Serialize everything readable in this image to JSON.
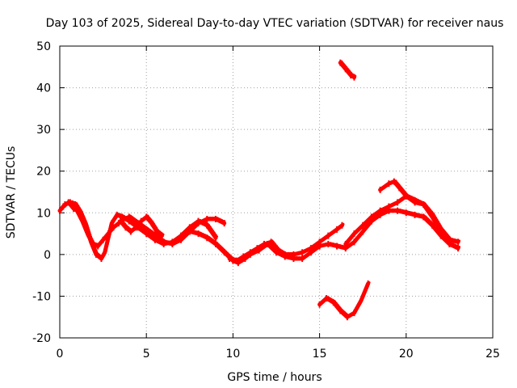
{
  "chart_data": {
    "type": "line",
    "title": "Day 103 of 2025, Sidereal Day-to-day VTEC variation (SDTVAR) for receiver naus",
    "xlabel": "GPS time / hours",
    "ylabel": "SDTVAR / TECUs",
    "xlim": [
      0,
      25
    ],
    "ylim": [
      -20,
      50
    ],
    "xticks": [
      0,
      5,
      10,
      15,
      20,
      25
    ],
    "yticks": [
      -20,
      -10,
      0,
      10,
      20,
      30,
      40,
      50
    ],
    "xtick_labels": [
      "0",
      "5",
      "10",
      "15",
      "20",
      "25"
    ],
    "ytick_labels": [
      "-20",
      "-10",
      "0",
      "10",
      "20",
      "30",
      "40",
      "50"
    ],
    "grid": true,
    "legend": "none",
    "series_color": "#ff0000",
    "series": [
      {
        "name": "track-a",
        "x": [
          0.0,
          0.3,
          0.6,
          0.9,
          1.2,
          1.5,
          1.8,
          2.1,
          2.4,
          2.6,
          2.8,
          3.0,
          3.3,
          3.6,
          4.0,
          4.5,
          5.0,
          5.5,
          6.0,
          6.5,
          7.0,
          7.5,
          8.0,
          8.5,
          9.0
        ],
        "y": [
          10.5,
          12.0,
          12.5,
          12.0,
          10.0,
          7.0,
          3.0,
          0.0,
          -1.0,
          0.5,
          4.0,
          7.5,
          9.5,
          9.0,
          8.0,
          6.5,
          5.0,
          3.5,
          2.5,
          3.0,
          4.5,
          6.5,
          8.0,
          7.0,
          4.0
        ]
      },
      {
        "name": "track-b",
        "x": [
          0.2,
          0.5,
          0.8,
          1.0,
          1.3,
          1.6,
          1.9,
          2.2,
          2.5,
          2.8,
          3.1,
          3.4,
          3.7,
          4.0,
          4.5,
          5.0,
          5.5,
          6.0,
          6.5,
          7.0,
          7.5,
          8.0,
          8.5,
          9.0,
          9.5
        ],
        "y": [
          11.5,
          12.5,
          11.0,
          10.5,
          8.0,
          5.0,
          2.5,
          2.0,
          3.5,
          5.0,
          6.5,
          7.5,
          8.5,
          9.0,
          7.5,
          6.0,
          4.5,
          3.0,
          2.5,
          3.5,
          5.5,
          7.5,
          8.5,
          8.5,
          7.5
        ]
      },
      {
        "name": "track-c",
        "x": [
          3.5,
          3.8,
          4.1,
          4.4,
          4.7,
          5.0,
          5.3,
          5.6,
          5.9
        ],
        "y": [
          8.0,
          6.5,
          5.5,
          6.5,
          8.0,
          9.0,
          7.5,
          5.5,
          4.5
        ]
      },
      {
        "name": "track-d",
        "x": [
          7.5,
          8.0,
          8.5,
          9.0,
          9.5,
          10.0,
          10.3,
          10.7,
          11.0,
          11.5,
          12.0,
          12.5,
          13.0,
          13.5,
          14.0,
          14.5,
          15.0
        ],
        "y": [
          5.5,
          5.0,
          4.0,
          2.5,
          0.5,
          -1.5,
          -2.0,
          -1.0,
          0.0,
          1.0,
          2.5,
          0.5,
          -0.5,
          -1.0,
          -1.0,
          0.5,
          2.0
        ]
      },
      {
        "name": "track-e",
        "x": [
          9.8,
          10.2,
          10.6,
          11.0,
          11.4,
          11.8,
          12.2,
          12.6,
          13.0,
          13.5,
          14.0,
          14.5,
          15.0,
          15.5,
          16.0,
          16.3
        ],
        "y": [
          -1.0,
          -1.5,
          -0.5,
          0.5,
          1.5,
          2.5,
          3.0,
          1.0,
          0.0,
          0.0,
          0.5,
          1.5,
          3.0,
          4.5,
          6.0,
          7.0
        ]
      },
      {
        "name": "track-f",
        "x": [
          15.0,
          15.5,
          16.0,
          16.5,
          17.0,
          17.5,
          18.0,
          18.5,
          19.0,
          19.5,
          20.0,
          20.5,
          21.0,
          21.5,
          22.0,
          22.5,
          23.0
        ],
        "y": [
          2.0,
          2.5,
          2.0,
          1.5,
          3.0,
          5.5,
          8.0,
          9.5,
          10.5,
          10.5,
          10.0,
          9.5,
          9.0,
          7.0,
          4.5,
          2.5,
          1.5
        ]
      },
      {
        "name": "track-g",
        "x": [
          16.5,
          17.0,
          17.5,
          18.0,
          18.5,
          19.0,
          19.5,
          20.0,
          20.5,
          21.0,
          21.5,
          22.0,
          22.5,
          23.0
        ],
        "y": [
          2.5,
          5.0,
          7.0,
          9.0,
          10.5,
          11.5,
          12.5,
          14.0,
          13.0,
          12.0,
          9.0,
          5.5,
          3.5,
          3.0
        ]
      },
      {
        "name": "track-h",
        "x": [
          18.5,
          19.0,
          19.3,
          19.6,
          20.0,
          20.5,
          21.0,
          21.5,
          22.0,
          22.5
        ],
        "y": [
          15.5,
          17.0,
          17.5,
          16.0,
          14.0,
          12.5,
          12.0,
          9.5,
          6.0,
          3.5
        ]
      },
      {
        "name": "track-i",
        "x": [
          16.2,
          16.5,
          16.8,
          17.0
        ],
        "y": [
          46.0,
          44.5,
          43.0,
          42.5
        ]
      },
      {
        "name": "track-j",
        "x": [
          15.0,
          15.4,
          15.8,
          16.2,
          16.6,
          17.0,
          17.4,
          17.8
        ],
        "y": [
          -12.0,
          -10.5,
          -11.5,
          -13.5,
          -15.0,
          -14.0,
          -11.0,
          -7.0
        ]
      }
    ]
  }
}
